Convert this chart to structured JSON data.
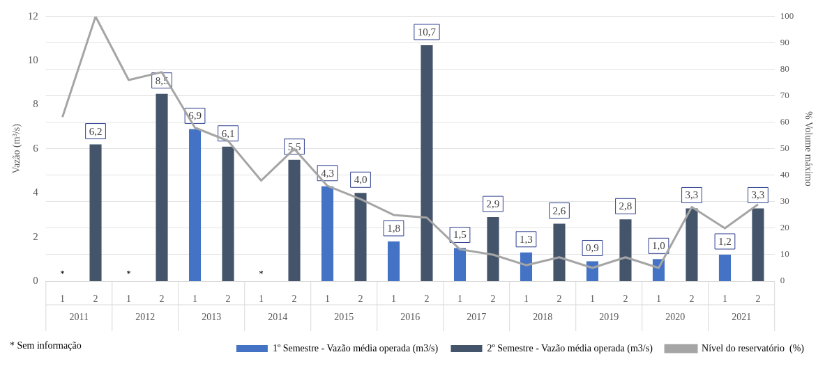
{
  "chart_data": {
    "type": "bar",
    "ylabel": "Vazão (m³/s)",
    "y2label": "% Volume máximo",
    "categories": [
      "1",
      "2",
      "1",
      "2",
      "1",
      "2",
      "1",
      "2",
      "1",
      "2",
      "1",
      "2",
      "1",
      "2",
      "1",
      "2",
      "1",
      "2",
      "1",
      "2",
      "1",
      "2"
    ],
    "series": [
      {
        "name": "1º Semestre - Vazão média operada (m3/s)",
        "color": "#4472c4",
        "values": [
          null,
          null,
          null,
          null,
          6.9,
          null,
          null,
          null,
          4.3,
          null,
          1.8,
          null,
          1.5,
          null,
          1.3,
          null,
          0.9,
          null,
          1.0,
          null,
          1.2,
          null
        ],
        "value_labels": [
          null,
          null,
          null,
          null,
          "6,9",
          null,
          null,
          null,
          "4,3",
          null,
          "1,8",
          null,
          "1,5",
          null,
          "1,3",
          null,
          "0,9",
          null,
          "1,0",
          null,
          "1,2",
          null
        ]
      },
      {
        "name": "2º Semestre - Vazão média operada (m3/s)",
        "color": "#44546a",
        "values": [
          null,
          6.2,
          null,
          8.5,
          null,
          6.1,
          null,
          5.5,
          null,
          4.0,
          null,
          10.7,
          null,
          2.9,
          null,
          2.6,
          null,
          2.8,
          null,
          3.3,
          null,
          3.3
        ],
        "value_labels": [
          null,
          "6,2",
          null,
          "8,5",
          null,
          "6,1",
          null,
          "5,5",
          null,
          "4,0",
          null,
          "10,7",
          null,
          "2,9",
          null,
          "2,6",
          null,
          "2,8",
          null,
          "3,3",
          null,
          "3,3"
        ]
      },
      {
        "name": "Nível do reservatório  (%)",
        "type": "line",
        "axis": "y2",
        "color": "#a5a5a5",
        "values": [
          62,
          100,
          76,
          79,
          58,
          53,
          38,
          50,
          36,
          31,
          25,
          24,
          12,
          10,
          6,
          9,
          5,
          9,
          5,
          28,
          20,
          29
        ]
      }
    ],
    "ylim": [
      0,
      12
    ],
    "yticks": [
      0,
      2,
      4,
      6,
      8,
      10,
      12
    ],
    "y2lim": [
      0,
      100
    ],
    "y2ticks": [
      0,
      10,
      20,
      30,
      40,
      50,
      60,
      70,
      80,
      90,
      100
    ],
    "grid": true,
    "legend": "bottom",
    "marker": "none",
    "annotations": [
      "* Sem informação",
      "2011",
      "2012",
      "2013",
      "2014",
      "2015",
      "2016",
      "2017",
      "2018",
      "2019",
      "2020",
      "2021",
      "*",
      "*",
      "*"
    ]
  }
}
